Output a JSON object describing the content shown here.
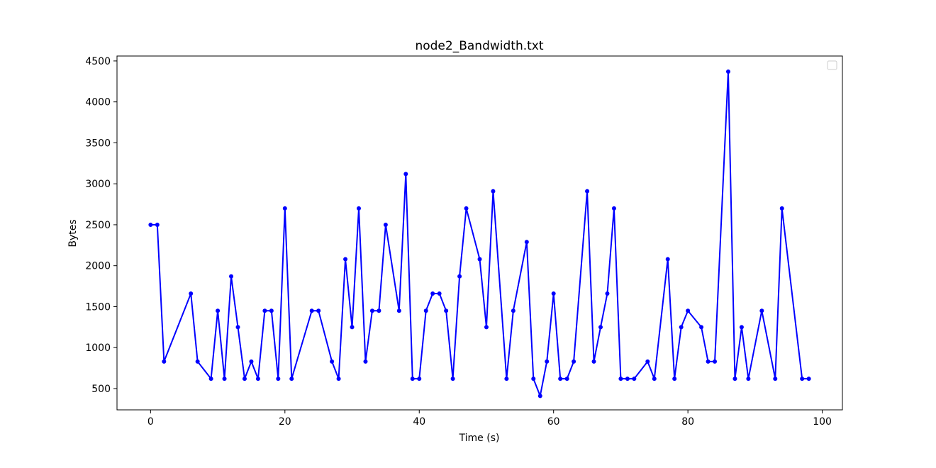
{
  "chart_data": {
    "type": "line",
    "title": "node2_Bandwidth.txt",
    "xlabel": "Time (s)",
    "ylabel": "Bytes",
    "xlim": [
      -5,
      103
    ],
    "ylim": [
      240,
      4560
    ],
    "xticks": [
      0,
      20,
      40,
      60,
      80,
      100
    ],
    "yticks": [
      500,
      1000,
      1500,
      2000,
      2500,
      3000,
      3500,
      4000,
      4500
    ],
    "grid": false,
    "legend": "top-right (empty)",
    "colors": {
      "line": "#0000ff",
      "axes": "#000000",
      "legend_border": "#cccccc"
    },
    "series": [
      {
        "x": [
          0,
          1,
          2,
          6,
          7,
          9,
          10,
          11,
          12,
          13,
          14,
          15,
          16,
          17,
          18,
          19,
          20,
          21,
          24,
          25,
          27,
          28,
          29,
          30,
          31,
          32,
          33,
          34,
          35,
          37,
          38,
          39,
          40,
          41,
          42,
          43,
          44,
          45,
          46,
          47,
          49,
          50,
          51,
          53,
          54,
          56,
          57,
          58,
          59,
          60,
          61,
          62,
          63,
          65,
          66,
          67,
          68,
          69,
          70,
          71,
          72,
          74,
          75,
          77,
          78,
          79,
          80,
          82,
          83,
          84,
          86,
          87,
          88,
          89,
          91,
          93,
          94,
          97,
          98
        ],
        "y": [
          2500,
          2500,
          830,
          1660,
          830,
          620,
          1450,
          620,
          1870,
          1250,
          620,
          830,
          620,
          1450,
          1450,
          620,
          2700,
          620,
          1450,
          1450,
          830,
          620,
          2080,
          1250,
          2700,
          830,
          1450,
          1450,
          2500,
          1450,
          3120,
          620,
          620,
          1450,
          1660,
          1660,
          1450,
          620,
          1870,
          2700,
          2080,
          1250,
          2910,
          620,
          1450,
          2290,
          620,
          410,
          830,
          1660,
          620,
          620,
          830,
          2910,
          830,
          1250,
          1660,
          2700,
          620,
          620,
          620,
          830,
          620,
          2080,
          620,
          1250,
          1450,
          1250,
          830,
          830,
          4370,
          620,
          1250,
          620,
          1450,
          620,
          2700,
          620,
          620
        ]
      }
    ]
  }
}
